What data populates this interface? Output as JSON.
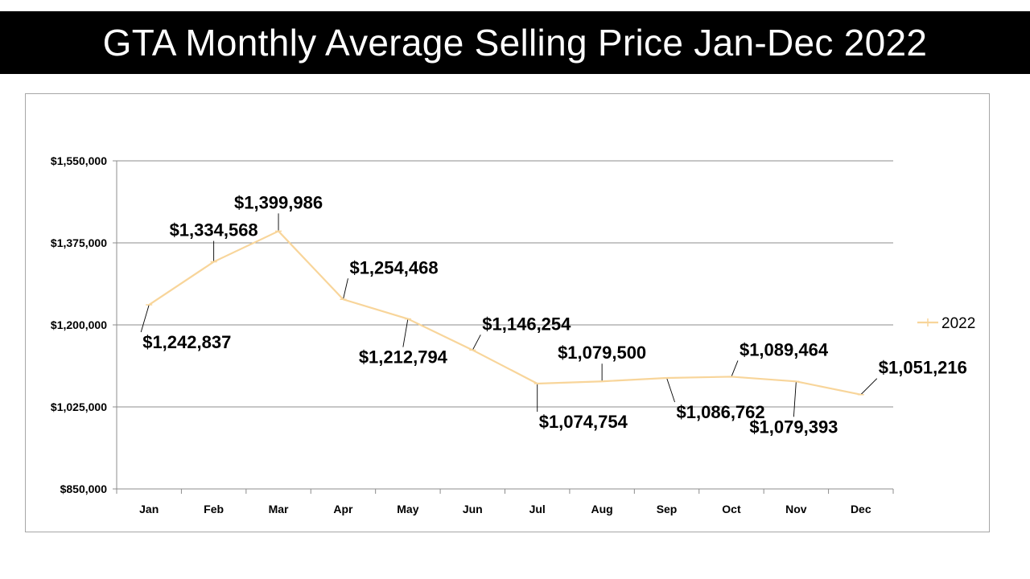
{
  "title": "GTA Monthly Average Selling Price Jan-Dec 2022",
  "colors": {
    "line": "#f8d59a",
    "grid": "#8c8c8c",
    "axis": "#8c8c8c"
  },
  "chart_data": {
    "type": "line",
    "title": "GTA Monthly Average Selling Price Jan-Dec 2022",
    "xlabel": "",
    "ylabel": "",
    "categories": [
      "Jan",
      "Feb",
      "Mar",
      "Apr",
      "May",
      "Jun",
      "Jul",
      "Aug",
      "Sep",
      "Oct",
      "Nov",
      "Dec"
    ],
    "series": [
      {
        "name": "2022",
        "values": [
          1242837,
          1334568,
          1399986,
          1254468,
          1212794,
          1146254,
          1074754,
          1079500,
          1086762,
          1089464,
          1079393,
          1051216
        ],
        "labels": [
          "$1,242,837",
          "$1,334,568",
          "$1,399,986",
          "$1,254,468",
          "$1,212,794",
          "$1,146,254",
          "$1,074,754",
          "$1,079,500",
          "$1,086,762",
          "$1,089,464",
          "$1,079,393",
          "$1,051,216"
        ]
      }
    ],
    "ylim": [
      850000,
      1550000
    ],
    "yticks": [
      850000,
      1025000,
      1200000,
      1375000,
      1550000
    ],
    "ytick_labels": [
      "$850,000",
      "$1,025,000",
      "$1,200,000",
      "$1,375,000",
      "$1,550,000"
    ],
    "grid": true,
    "legend": "right"
  }
}
